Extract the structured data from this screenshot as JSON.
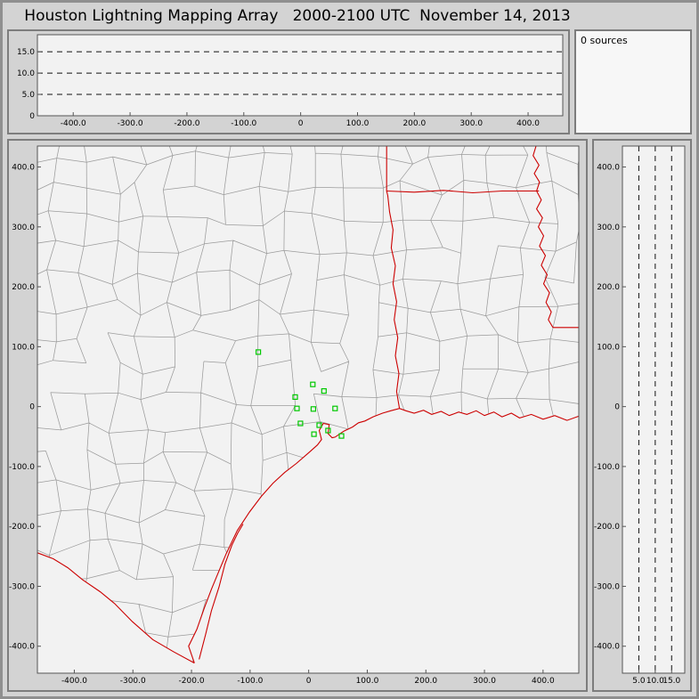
{
  "title": "Houston Lightning Mapping Array   2000-2100 UTC  November 14, 2013",
  "sources_box": {
    "label": "0 sources"
  },
  "colors": {
    "window_bg": "#d3d3d3",
    "plot_bg": "#f2f2f2",
    "panel_border": "#7d7d7d",
    "frame": "#555555",
    "county_line": "#9b9b9b",
    "state_line": "#cc0000",
    "station_marker": "#00c800",
    "dashed_line": "#111111",
    "text": "#000000"
  },
  "chart_data": {
    "type": "scatter",
    "title": "Houston Lightning Mapping Array",
    "time_window": "2000-2100 UTC November 14, 2013",
    "source_count": 0,
    "source_points": [],
    "panels": {
      "altitude_vs_ew": {
        "xlim": [
          -463,
          461
        ],
        "ylim": [
          0,
          19
        ],
        "xticks": [
          -400,
          -300,
          -200,
          -100,
          0,
          100,
          200,
          300,
          400
        ],
        "xtick_labels": [
          "-400.0",
          "-300.0",
          "-200.0",
          "-100.0",
          "0",
          "100.0",
          "200.0",
          "300.0",
          "400.0"
        ],
        "yticks": [
          15,
          10,
          5,
          0
        ],
        "ytick_labels": [
          "15.0",
          "10.0",
          "5.0",
          "0"
        ],
        "dashed_altitudes_km": [
          5,
          10,
          15
        ],
        "points": []
      },
      "plan_view": {
        "xlim": [
          -463,
          461
        ],
        "ylim": [
          -445,
          435
        ],
        "xticks": [
          -400,
          -300,
          -200,
          -100,
          0,
          100,
          200,
          300,
          400
        ],
        "xtick_labels": [
          "-400.0",
          "-300.0",
          "-200.0",
          "-100.0",
          "0",
          "100.0",
          "200.0",
          "300.0",
          "400.0"
        ],
        "yticks": [
          400,
          300,
          200,
          100,
          0,
          -100,
          -200,
          -300,
          -400
        ],
        "ytick_labels": [
          "400.0",
          "300.0",
          "200.0",
          "100.0",
          "0",
          "-100.0",
          "-200.0",
          "-300.0",
          "-400.0"
        ],
        "stations_km": [
          [
            -86,
            91
          ],
          [
            7,
            37
          ],
          [
            26,
            26
          ],
          [
            -23,
            16
          ],
          [
            -20,
            -3
          ],
          [
            8,
            -4
          ],
          [
            45,
            -3
          ],
          [
            -14,
            -28
          ],
          [
            18,
            -31
          ],
          [
            9,
            -46
          ],
          [
            33,
            -40
          ],
          [
            56,
            -49
          ]
        ],
        "points": []
      },
      "altitude_vs_ns": {
        "xlim": [
          0,
          19
        ],
        "ylim": [
          -445,
          435
        ],
        "xticks": [
          5,
          10,
          15
        ],
        "xtick_labels": [
          "5.0",
          "10.0",
          "15.0"
        ],
        "yticks": [
          400,
          300,
          200,
          100,
          0,
          -100,
          -200,
          -300,
          -400
        ],
        "ytick_labels": [
          "400.0",
          "300.0",
          "200.0",
          "100.0",
          "0",
          "-100.0",
          "-200.0",
          "-300.0",
          "-400.0"
        ],
        "dashed_altitudes_km": [
          5,
          10,
          15
        ],
        "points": []
      }
    }
  }
}
